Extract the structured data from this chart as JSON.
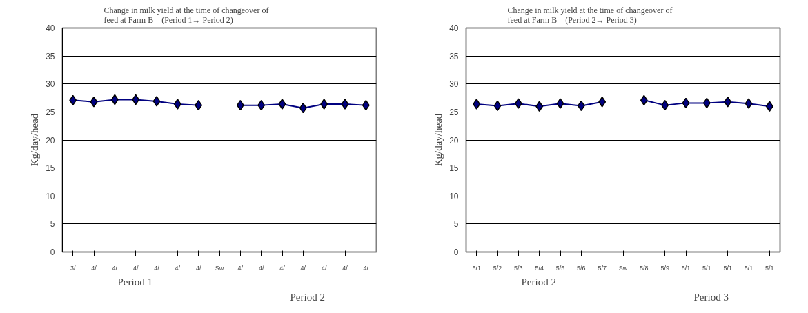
{
  "chart_data": [
    {
      "type": "line",
      "title": "Change in milk yield at the time of changeover of feed at Farm B　(Period 1→ Period 2)",
      "ylabel": "Kg/day/head",
      "categories": [
        "3/",
        "4/",
        "4/",
        "4/",
        "4/",
        "4/",
        "4/",
        "Sw",
        "4/",
        "4/",
        "4/",
        "4/",
        "4/",
        "4/",
        "4/"
      ],
      "series": [
        {
          "color": "#000080",
          "values": [
            27.1,
            26.8,
            27.2,
            27.2,
            26.9,
            26.4,
            26.2,
            null,
            26.2,
            26.2,
            26.4,
            25.7,
            26.4,
            26.4,
            26.2
          ]
        }
      ],
      "ylim": [
        0,
        40
      ],
      "yticks": [
        0,
        5,
        10,
        15,
        20,
        25,
        30,
        35,
        40
      ],
      "grid": "y",
      "marker": "diamond",
      "annotations": [
        "Period 1",
        "Period 2"
      ]
    },
    {
      "type": "line",
      "title": "Change in milk yield at the time of changeover of feed at Farm B　(Period 2→ Period 3)",
      "ylabel": "Kg/day/head",
      "categories": [
        "5/1",
        "5/2",
        "5/3",
        "5/4",
        "5/5",
        "5/6",
        "5/7",
        "Sw",
        "5/8",
        "5/9",
        "5/1",
        "5/1",
        "5/1",
        "5/1",
        "5/1"
      ],
      "series": [
        {
          "color": "#000080",
          "values": [
            26.4,
            26.1,
            26.5,
            26.0,
            26.5,
            26.1,
            26.8,
            null,
            27.1,
            26.2,
            26.6,
            26.6,
            26.8,
            26.5,
            26.0
          ]
        }
      ],
      "ylim": [
        0,
        40
      ],
      "yticks": [
        0,
        5,
        10,
        15,
        20,
        25,
        30,
        35,
        40
      ],
      "grid": "y",
      "marker": "diamond",
      "annotations": [
        "Period 2",
        "Period 3"
      ]
    }
  ]
}
